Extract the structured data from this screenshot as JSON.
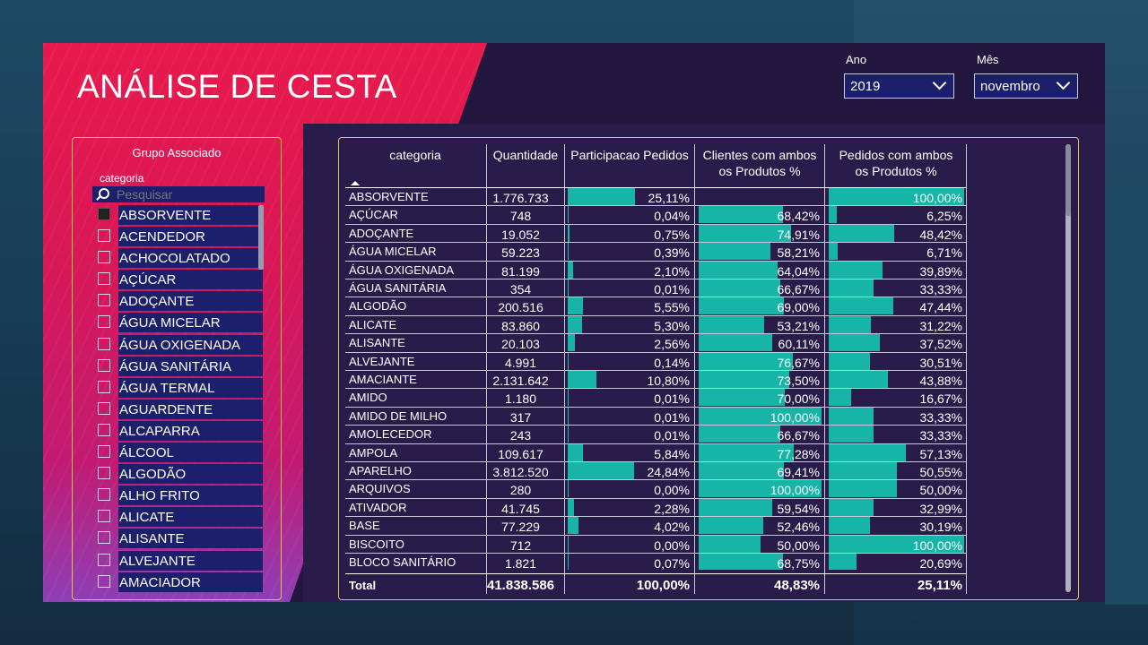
{
  "title": "ANÁLISE DE CESTA",
  "filters": {
    "year": {
      "label": "Ano",
      "value": "2019"
    },
    "month": {
      "label": "Mês",
      "value": "novembro"
    }
  },
  "slicer": {
    "title": "Grupo Associado",
    "field": "categoria",
    "search_placeholder": "Pesquisar",
    "items": [
      {
        "label": "ABSORVENTE",
        "checked": true
      },
      {
        "label": "ACENDEDOR",
        "checked": false
      },
      {
        "label": "ACHOCOLATADO",
        "checked": false
      },
      {
        "label": "AÇÚCAR",
        "checked": false
      },
      {
        "label": "ADOÇANTE",
        "checked": false
      },
      {
        "label": "ÁGUA MICELAR",
        "checked": false
      },
      {
        "label": "ÁGUA OXIGENADA",
        "checked": false
      },
      {
        "label": "ÁGUA SANITÁRIA",
        "checked": false
      },
      {
        "label": "ÁGUA TERMAL",
        "checked": false
      },
      {
        "label": "AGUARDENTE",
        "checked": false
      },
      {
        "label": "ALCAPARRA",
        "checked": false
      },
      {
        "label": "ÁLCOOL",
        "checked": false
      },
      {
        "label": "ALGODÃO",
        "checked": false
      },
      {
        "label": "ALHO FRITO",
        "checked": false
      },
      {
        "label": "ALICATE",
        "checked": false
      },
      {
        "label": "ALISANTE",
        "checked": false
      },
      {
        "label": "ALVEJANTE",
        "checked": false
      },
      {
        "label": "AMACIADOR",
        "checked": false
      }
    ]
  },
  "table": {
    "columns": [
      "categoria",
      "Quantidade",
      "Participacao Pedidos",
      "Clientes com ambos os Produtos %",
      "Pedidos com ambos os Produtos %"
    ],
    "rows": [
      {
        "categoria": "ABSORVENTE",
        "quantidade": "1.776.733",
        "participacao": "25,11%",
        "clientes": "",
        "pedidos": "100,00%",
        "p": 25.11,
        "c": null,
        "d": 100.0
      },
      {
        "categoria": "AÇÚCAR",
        "quantidade": "748",
        "participacao": "0,04%",
        "clientes": "68,42%",
        "pedidos": "6,25%",
        "p": 0.04,
        "c": 68.42,
        "d": 6.25
      },
      {
        "categoria": "ADOÇANTE",
        "quantidade": "19.052",
        "participacao": "0,75%",
        "clientes": "74,91%",
        "pedidos": "48,42%",
        "p": 0.75,
        "c": 74.91,
        "d": 48.42
      },
      {
        "categoria": "ÁGUA MICELAR",
        "quantidade": "59.223",
        "participacao": "0,39%",
        "clientes": "58,21%",
        "pedidos": "6,71%",
        "p": 0.39,
        "c": 58.21,
        "d": 6.71
      },
      {
        "categoria": "ÁGUA OXIGENADA",
        "quantidade": "81.199",
        "participacao": "2,10%",
        "clientes": "64,04%",
        "pedidos": "39,89%",
        "p": 2.1,
        "c": 64.04,
        "d": 39.89
      },
      {
        "categoria": "ÁGUA SANITÁRIA",
        "quantidade": "354",
        "participacao": "0,01%",
        "clientes": "66,67%",
        "pedidos": "33,33%",
        "p": 0.01,
        "c": 66.67,
        "d": 33.33
      },
      {
        "categoria": "ALGODÃO",
        "quantidade": "200.516",
        "participacao": "5,55%",
        "clientes": "69,00%",
        "pedidos": "47,44%",
        "p": 5.55,
        "c": 69.0,
        "d": 47.44
      },
      {
        "categoria": "ALICATE",
        "quantidade": "83.860",
        "participacao": "5,30%",
        "clientes": "53,21%",
        "pedidos": "31,22%",
        "p": 5.3,
        "c": 53.21,
        "d": 31.22
      },
      {
        "categoria": "ALISANTE",
        "quantidade": "20.103",
        "participacao": "2,56%",
        "clientes": "60,11%",
        "pedidos": "37,52%",
        "p": 2.56,
        "c": 60.11,
        "d": 37.52
      },
      {
        "categoria": "ALVEJANTE",
        "quantidade": "4.991",
        "participacao": "0,14%",
        "clientes": "76,67%",
        "pedidos": "30,51%",
        "p": 0.14,
        "c": 76.67,
        "d": 30.51
      },
      {
        "categoria": "AMACIANTE",
        "quantidade": "2.131.642",
        "participacao": "10,80%",
        "clientes": "73,50%",
        "pedidos": "43,88%",
        "p": 10.8,
        "c": 73.5,
        "d": 43.88
      },
      {
        "categoria": "AMIDO",
        "quantidade": "1.180",
        "participacao": "0,01%",
        "clientes": "70,00%",
        "pedidos": "16,67%",
        "p": 0.01,
        "c": 70.0,
        "d": 16.67
      },
      {
        "categoria": "AMIDO DE MILHO",
        "quantidade": "317",
        "participacao": "0,01%",
        "clientes": "100,00%",
        "pedidos": "33,33%",
        "p": 0.01,
        "c": 100.0,
        "d": 33.33
      },
      {
        "categoria": "AMOLECEDOR",
        "quantidade": "243",
        "participacao": "0,01%",
        "clientes": "66,67%",
        "pedidos": "33,33%",
        "p": 0.01,
        "c": 66.67,
        "d": 33.33
      },
      {
        "categoria": "AMPOLA",
        "quantidade": "109.617",
        "participacao": "5,84%",
        "clientes": "77,28%",
        "pedidos": "57,13%",
        "p": 5.84,
        "c": 77.28,
        "d": 57.13
      },
      {
        "categoria": "APARELHO",
        "quantidade": "3.812.520",
        "participacao": "24,84%",
        "clientes": "69,41%",
        "pedidos": "50,55%",
        "p": 24.84,
        "c": 69.41,
        "d": 50.55
      },
      {
        "categoria": "ARQUIVOS",
        "quantidade": "280",
        "participacao": "0,00%",
        "clientes": "100,00%",
        "pedidos": "50,00%",
        "p": 0.0,
        "c": 100.0,
        "d": 50.0
      },
      {
        "categoria": "ATIVADOR",
        "quantidade": "41.745",
        "participacao": "2,28%",
        "clientes": "59,54%",
        "pedidos": "32,99%",
        "p": 2.28,
        "c": 59.54,
        "d": 32.99
      },
      {
        "categoria": "BASE",
        "quantidade": "77.229",
        "participacao": "4,02%",
        "clientes": "52,46%",
        "pedidos": "30,19%",
        "p": 4.02,
        "c": 52.46,
        "d": 30.19
      },
      {
        "categoria": "BISCOITO",
        "quantidade": "712",
        "participacao": "0,00%",
        "clientes": "50,00%",
        "pedidos": "100,00%",
        "p": 0.0,
        "c": 50.0,
        "d": 100.0
      },
      {
        "categoria": "BLOCO SANITÁRIO",
        "quantidade": "1.821",
        "participacao": "0,07%",
        "clientes": "68,75%",
        "pedidos": "20,69%",
        "p": 0.07,
        "c": 68.75,
        "d": 20.69
      }
    ],
    "total": {
      "label": "Total",
      "quantidade": "41.838.586",
      "participacao": "100,00%",
      "clientes": "48,83%",
      "pedidos": "25,11%"
    }
  },
  "colors": {
    "accent_bar": "#17b5a8",
    "slicer_item_bg": "#1c1f6b",
    "border_gold": "#e6c53a"
  }
}
